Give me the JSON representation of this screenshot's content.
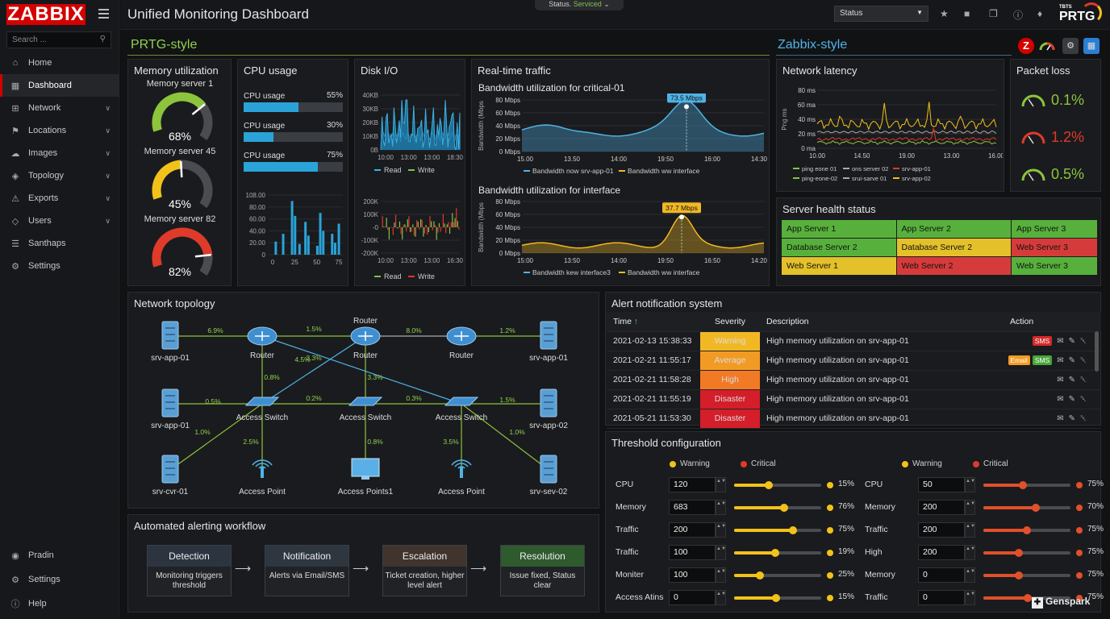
{
  "brand": "ZABBIX",
  "search_placeholder": "Search ...",
  "sidebar": {
    "items": [
      {
        "label": "Home",
        "icon": "home-icon",
        "chev": false
      },
      {
        "label": "Dashboard",
        "icon": "grid-icon",
        "chev": false,
        "active": true
      },
      {
        "label": "Network",
        "icon": "network-icon",
        "chev": true
      },
      {
        "label": "Locations",
        "icon": "bell-icon",
        "chev": true
      },
      {
        "label": "Images",
        "icon": "cloud-icon",
        "chev": true
      },
      {
        "label": "Topology",
        "icon": "layers-icon",
        "chev": true
      },
      {
        "label": "Exports",
        "icon": "warning-icon",
        "chev": true
      },
      {
        "label": "Users",
        "icon": "shield-icon",
        "chev": true
      },
      {
        "label": "Santhaps",
        "icon": "list-icon",
        "chev": false
      },
      {
        "label": "Settings",
        "icon": "gear-icon",
        "chev": false
      }
    ],
    "bottom": [
      {
        "label": "Pradin",
        "icon": "pin-icon"
      },
      {
        "label": "Settings",
        "icon": "gear-icon"
      },
      {
        "label": "Help",
        "icon": "help-icon"
      }
    ]
  },
  "header": {
    "title": "Unified Monitoring Dashboard",
    "status_prefix": "Status. ",
    "status_value": "Serviced",
    "select_value": "Status",
    "prtg_small": "TBTS",
    "prtg": "PRTG"
  },
  "sections": {
    "prtg": "PRTG-style",
    "zabbix": "Zabbix-style"
  },
  "memory": {
    "title": "Memory utilization",
    "gauges": [
      {
        "label": "Memory server 1",
        "value": "68%",
        "fraction": 0.68,
        "color": "#8cc43c"
      },
      {
        "label": "Memory server 45",
        "value": "45%",
        "fraction": 0.45,
        "color": "#f2c21a"
      },
      {
        "label": "Memory server 82",
        "value": "82%",
        "fraction": 0.82,
        "color": "#e03a2a"
      }
    ]
  },
  "cpu": {
    "title": "CPU usage",
    "rows": [
      {
        "label": "CPU usage",
        "value": "55%",
        "fraction": 0.55
      },
      {
        "label": "CPU usage",
        "value": "30%",
        "fraction": 0.3
      },
      {
        "label": "CPU usage",
        "value": "75%",
        "fraction": 0.75
      }
    ],
    "chart": {
      "yticks": [
        "108.00",
        "80.00",
        "60.00",
        "40.00",
        "20.00",
        "0"
      ],
      "xticks": [
        "0",
        "25",
        "50",
        "75"
      ]
    }
  },
  "disk": {
    "title": "Disk I/O",
    "top_y": [
      "40KB",
      "30KB",
      "20KB",
      "10KB",
      "0B"
    ],
    "top_x": [
      "10:00",
      "13:00",
      "13:00",
      "18:30"
    ],
    "bottom_y": [
      "200K",
      "100K",
      "-0",
      "-100K",
      "-200K"
    ],
    "bottom_x": [
      "10:00",
      "13:00",
      "13:00",
      "16:30"
    ],
    "legend_top": [
      "Read",
      "Write"
    ],
    "legend_bottom": [
      "Read",
      "Write"
    ]
  },
  "traffic": {
    "title": "Real-time traffic",
    "chart1": {
      "subtitle": "Bandwidth utilization for critical-01",
      "ylabel": "Bandwidth (Mbps",
      "yticks": [
        "80 Mbps",
        "60 Mbps",
        "40 Mbps",
        "20 Mbps",
        "0 Mbps"
      ],
      "xticks": [
        "15.00",
        "13.50",
        "14:00",
        "19:50",
        "16:00",
        "14:30"
      ],
      "tooltip": "73.5 Mbps",
      "legend": [
        "Bandwidth now srv-app-01",
        "Bandwidth ww interface"
      ]
    },
    "chart2": {
      "subtitle": "Bandwidth utilization for interface",
      "ylabel": "Bandwidth (Mbps",
      "yticks": [
        "80 Mbps",
        "60 Mbps",
        "40 Mbps",
        "20 Mbps",
        "0 Mbps"
      ],
      "xticks": [
        "15:00",
        "13:50",
        "14:00",
        "19:50",
        "16:50",
        "14:20"
      ],
      "tooltip": "37.7 Mbps",
      "legend": [
        "Bandwidth kew interface3",
        "Bandwidth ww interface"
      ]
    }
  },
  "latency": {
    "title": "Network latency",
    "ylabel": "Png ms",
    "yticks": [
      "80 ms",
      "60 ma",
      "40 ms",
      "20 ms",
      "0 ma"
    ],
    "xticks": [
      "10.00",
      "14.50",
      "19.00",
      "13.00",
      "16.00"
    ],
    "legend": [
      {
        "name": "ping eone 01",
        "color": "#8cc43c"
      },
      {
        "name": "ons server 02",
        "color": "#aaaaaa"
      },
      {
        "name": "srv-app-01",
        "color": "#e03a2a"
      },
      {
        "name": "ping-eone-02",
        "color": "#8cc43c"
      },
      {
        "name": "srui-sarve 01",
        "color": "#aaaaaa"
      },
      {
        "name": "srv-app-02",
        "color": "#f2c21a"
      }
    ]
  },
  "packet": {
    "title": "Packet loss",
    "items": [
      {
        "value": "0.1%",
        "color": "#8cc43c"
      },
      {
        "value": "1.2%",
        "color": "#e03a2a"
      },
      {
        "value": "0.5%",
        "color": "#8cc43c"
      }
    ]
  },
  "health": {
    "title": "Server health status",
    "rows": [
      [
        {
          "t": "App Server 1",
          "c": "g"
        },
        {
          "t": "App Server 2",
          "c": "g"
        },
        {
          "t": "App Server 3",
          "c": "g"
        }
      ],
      [
        {
          "t": "Database Server 2",
          "c": "g"
        },
        {
          "t": "Database Server 2",
          "c": "y"
        },
        {
          "t": "Web Server 3",
          "c": "r"
        }
      ],
      [
        {
          "t": "Web Server 1",
          "c": "y"
        },
        {
          "t": "Web Server 2",
          "c": "r"
        },
        {
          "t": "Web Server 3",
          "c": "g"
        }
      ]
    ]
  },
  "topology": {
    "title": "Network topology",
    "labels": {
      "srv1": "srv-app-01",
      "router1": "Router",
      "router2": "Router",
      "router2_top": "Router",
      "router3": "Router",
      "srv2": "srv-app-01",
      "srv3": "srv-app-01",
      "sw1": "Access Switch",
      "sw2": "Access Switch",
      "sw3": "Access Switch",
      "srv4": "srv-app-02",
      "srv5": "srv-cvr-01",
      "ap1": "Access Point",
      "ap2": "Access Points1",
      "ap3": "Access Point",
      "srv6": "srv-sev-02"
    },
    "pcts": [
      "6.9%",
      "1.5%",
      "8.0%",
      "1.2%",
      "3.3%",
      "4.5%",
      "0.8%",
      "3.3%",
      "0.5%",
      "0:2%",
      "0.3%",
      "1.5%",
      "1.0%",
      "2.5%",
      "0.8%",
      "3.5%",
      "1.0%"
    ]
  },
  "workflow": {
    "title": "Automated alerting workflow",
    "steps": [
      {
        "head": "Detection",
        "body": "Monitoring triggers threshold",
        "color": "#2c3440"
      },
      {
        "head": "Notification",
        "body": "Alerts via Email/SMS",
        "color": "#2e3640"
      },
      {
        "head": "Escalation",
        "body": "Ticket creation, higher level alert",
        "color": "#40342c"
      },
      {
        "head": "Resolution",
        "body": "Issue fixed, Status clear",
        "color": "#2e5a2e"
      }
    ]
  },
  "alerts": {
    "title": "Alert notification system",
    "headers": [
      "Time",
      "Severity",
      "Description",
      "Action"
    ],
    "rows": [
      {
        "time": "2021-02-13 15:38:33",
        "sev": "Warning",
        "cls": "s-warn",
        "desc": "High memory utilization on srv-app-01",
        "tags": [
          {
            "t": "SMS",
            "c": "sms"
          }
        ]
      },
      {
        "time": "2021-02-21 11:55:17",
        "sev": "Average",
        "cls": "s-avg",
        "desc": "High memory utilization on srv-app-01",
        "tags": [
          {
            "t": "Email",
            "c": "email"
          },
          {
            "t": "SMS",
            "c": "sms2"
          }
        ]
      },
      {
        "time": "2021-02-21 11:58:28",
        "sev": "High",
        "cls": "s-high",
        "desc": "High memory utilization on srv-app-01",
        "tags": []
      },
      {
        "time": "2021-02-21 11:55:19",
        "sev": "Disaster",
        "cls": "s-dis",
        "desc": "High memory utilization on srv-app-01",
        "tags": []
      },
      {
        "time": "2021-05-21 11:53:30",
        "sev": "Disaster",
        "cls": "s-dis",
        "desc": "High memory utilization on srv-app-01",
        "tags": []
      }
    ]
  },
  "threshold": {
    "title": "Threshold configuration",
    "warning": "Warning",
    "critical": "Critical",
    "left": [
      {
        "label": "CPU",
        "val": "120",
        "pos": 0.4,
        "pct": "15%"
      },
      {
        "label": "Memory",
        "val": "683",
        "pos": 0.57,
        "pct": "76%"
      },
      {
        "label": "Traffic",
        "val": "200",
        "pos": 0.68,
        "pct": "75%"
      },
      {
        "label": "Traffic",
        "val": "100",
        "pos": 0.47,
        "pct": "19%"
      },
      {
        "label": "Moniter",
        "val": "100",
        "pos": 0.3,
        "pct": "25%"
      },
      {
        "label": "Access Atins",
        "val": "0",
        "pos": 0.48,
        "pct": "15%"
      }
    ],
    "right": [
      {
        "label": "CPU",
        "val": "50",
        "pos": 0.45,
        "pct": "75%"
      },
      {
        "label": "Memory",
        "val": "200",
        "pos": 0.6,
        "pct": "70%"
      },
      {
        "label": "Traffic",
        "val": "200",
        "pos": 0.5,
        "pct": "75%"
      },
      {
        "label": "High",
        "val": "200",
        "pos": 0.41,
        "pct": "75%"
      },
      {
        "label": "Memory",
        "val": "0",
        "pos": 0.41,
        "pct": "75%"
      },
      {
        "label": "Traffic",
        "val": "0",
        "pos": 0.51,
        "pct": "75%"
      }
    ]
  },
  "watermark": "Genspark"
}
